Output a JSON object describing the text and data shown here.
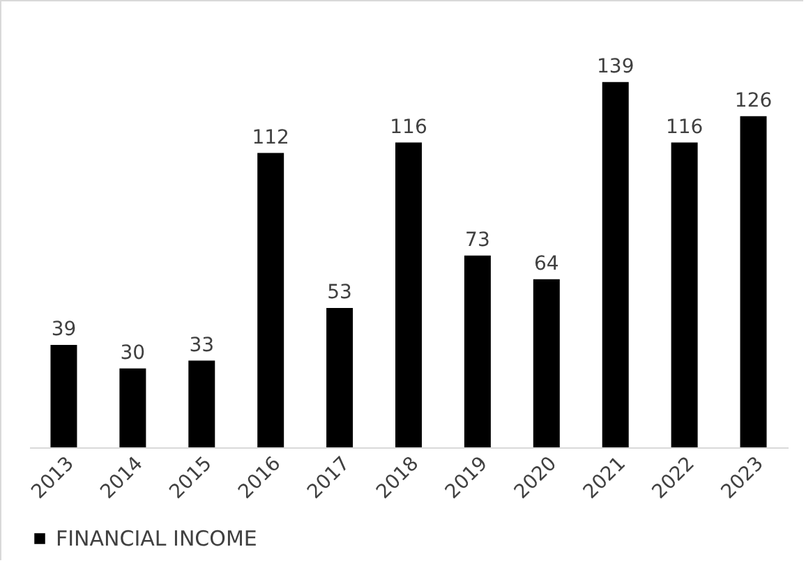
{
  "chart_data": {
    "type": "bar",
    "categories": [
      "2013",
      "2014",
      "2015",
      "2016",
      "2017",
      "2018",
      "2019",
      "2020",
      "2021",
      "2022",
      "2023"
    ],
    "series": [
      {
        "name": "FINANCIAL INCOME",
        "color": "#000000",
        "values": [
          39,
          30,
          33,
          112,
          53,
          116,
          73,
          64,
          139,
          116,
          126
        ]
      }
    ],
    "data_labels": true,
    "legend": "bottom",
    "grid": false
  }
}
